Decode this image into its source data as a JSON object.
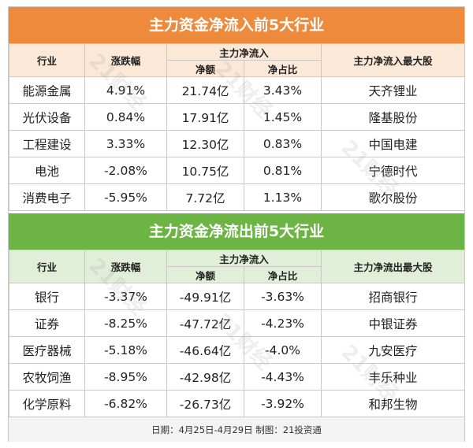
{
  "inflow": {
    "title": "主力资金净流入前5大行业",
    "headers": {
      "industry": "行业",
      "change": "涨跌幅",
      "main_flow": "主力净流入",
      "net_amount": "净额",
      "net_ratio": "净占比",
      "top_stock": "主力净流入最大股"
    },
    "rows": [
      {
        "industry": "能源金属",
        "change": "4.91%",
        "amount": "21.74亿",
        "ratio": "3.43%",
        "stock": "天齐锂业"
      },
      {
        "industry": "光伏设备",
        "change": "0.84%",
        "amount": "17.91亿",
        "ratio": "1.45%",
        "stock": "隆基股份"
      },
      {
        "industry": "工程建设",
        "change": "3.33%",
        "amount": "12.30亿",
        "ratio": "0.83%",
        "stock": "中国电建"
      },
      {
        "industry": "电池",
        "change": "-2.08%",
        "amount": "10.75亿",
        "ratio": "0.81%",
        "stock": "宁德时代"
      },
      {
        "industry": "消费电子",
        "change": "-5.95%",
        "amount": "7.72亿",
        "ratio": "1.13%",
        "stock": "歌尔股份"
      }
    ]
  },
  "outflow": {
    "title": "主力资金净流出前5大行业",
    "headers": {
      "industry": "行业",
      "change": "涨跌幅",
      "main_flow": "主力净流入",
      "net_amount": "净额",
      "net_ratio": "净占比",
      "top_stock": "主力净流出最大股"
    },
    "rows": [
      {
        "industry": "银行",
        "change": "-3.37%",
        "amount": "-49.91亿",
        "ratio": "-3.63%",
        "stock": "招商银行"
      },
      {
        "industry": "证券",
        "change": "-8.25%",
        "amount": "-47.72亿",
        "ratio": "-4.23%",
        "stock": "中银证券"
      },
      {
        "industry": "医疗器械",
        "change": "-5.18%",
        "amount": "-46.64亿",
        "ratio": "-4.0%",
        "stock": "九安医疗"
      },
      {
        "industry": "农牧饲渔",
        "change": "-8.95%",
        "amount": "-42.98亿",
        "ratio": "-4.43%",
        "stock": "丰乐种业"
      },
      {
        "industry": "化学原料",
        "change": "-6.82%",
        "amount": "-26.73亿",
        "ratio": "-3.92%",
        "stock": "和邦生物"
      }
    ]
  },
  "footer": "日期：4月25日-4月29日 制图：21投资通",
  "watermark": "21财经",
  "colors": {
    "orange": "#ee8a3b",
    "green": "#6cb444"
  }
}
